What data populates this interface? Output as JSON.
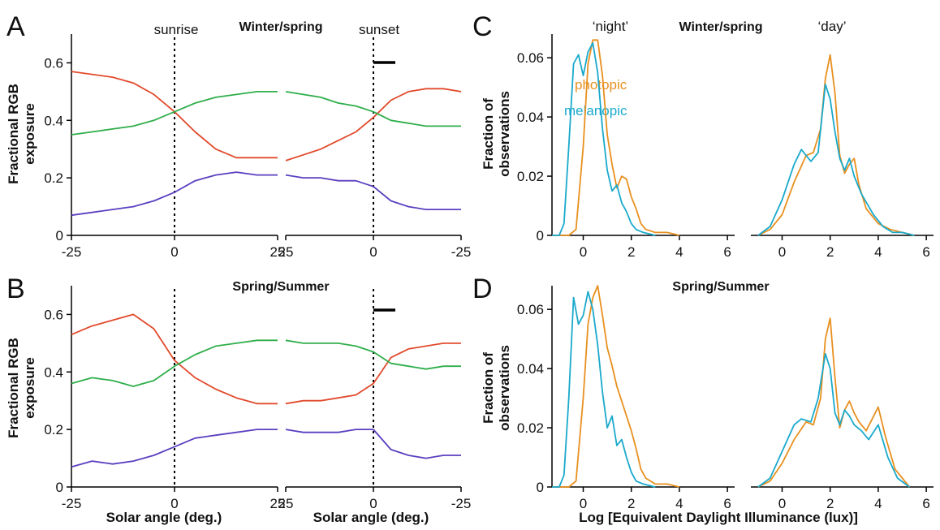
{
  "figure": {
    "panel_letters": [
      "A",
      "B",
      "C",
      "D"
    ],
    "titles": {
      "winter": "Winter/spring",
      "summer": "Spring/Summer"
    },
    "event_labels": {
      "sunrise": "sunrise",
      "sunset": "sunset"
    },
    "period_labels": {
      "night": "‘night’",
      "day": "‘day’"
    },
    "ylabel_rgb": [
      "Fractional RGB",
      "exposure"
    ],
    "ylabel_fraction": [
      "Fraction of",
      "observations"
    ],
    "xlabel_solar": "Solar angle (deg.)",
    "xlabel_log": "Log [Equivalent Daylight Illuminance (lux)]",
    "legend": {
      "photopic": "photopic",
      "melanopic": "melanopic"
    },
    "ticks": {
      "rgb_y": [
        "0",
        "0.2",
        "0.4",
        "0.6"
      ],
      "frac_y": [
        "0",
        "0.02",
        "0.04",
        "0.06"
      ],
      "sunrise_x": [
        "-25",
        "0",
        "25"
      ],
      "sunset_x": [
        "25",
        "0",
        "-25"
      ],
      "log_x": [
        "0",
        "2",
        "4",
        "6"
      ]
    }
  },
  "colors": {
    "red": "#e24a2c",
    "green": "#2fae4a",
    "blue": "#5a3fc0",
    "photopic": "#e8901f",
    "melanopic": "#1aa9cc"
  },
  "chart_data": [
    {
      "id": "A-sunrise",
      "type": "line",
      "title": "Winter/spring",
      "xlabel": "",
      "ylabel": "Fractional RGB exposure",
      "xlim": [
        -25,
        25
      ],
      "ylim": [
        0,
        0.7
      ],
      "xticks": [
        -25,
        0,
        25
      ],
      "yticks": [
        0,
        0.2,
        0.4,
        0.6
      ],
      "series": [
        {
          "color": "red",
          "x": [
            -25,
            -20,
            -15,
            -10,
            -5,
            0,
            5,
            10,
            15,
            20,
            25
          ],
          "y": [
            0.57,
            0.56,
            0.55,
            0.53,
            0.49,
            0.43,
            0.36,
            0.3,
            0.27,
            0.27,
            0.27
          ]
        },
        {
          "color": "green",
          "x": [
            -25,
            -20,
            -15,
            -10,
            -5,
            0,
            5,
            10,
            15,
            20,
            25
          ],
          "y": [
            0.35,
            0.36,
            0.37,
            0.38,
            0.4,
            0.43,
            0.46,
            0.48,
            0.49,
            0.5,
            0.5
          ]
        },
        {
          "color": "blue",
          "x": [
            -25,
            -20,
            -15,
            -10,
            -5,
            0,
            5,
            10,
            15,
            20,
            25
          ],
          "y": [
            0.07,
            0.08,
            0.09,
            0.1,
            0.12,
            0.15,
            0.19,
            0.21,
            0.22,
            0.21,
            0.21
          ]
        }
      ]
    },
    {
      "id": "A-sunset",
      "type": "line",
      "xlabel": "",
      "ylabel": "",
      "xlim": [
        25,
        -25
      ],
      "ylim": [
        0,
        0.7
      ],
      "xticks": [
        25,
        0,
        -25
      ],
      "yticks": [
        0,
        0.2,
        0.4,
        0.6
      ],
      "series": [
        {
          "color": "red",
          "x": [
            25,
            20,
            15,
            10,
            5,
            0,
            -5,
            -10,
            -15,
            -20,
            -25
          ],
          "y": [
            0.26,
            0.28,
            0.3,
            0.33,
            0.36,
            0.41,
            0.47,
            0.5,
            0.51,
            0.51,
            0.5
          ]
        },
        {
          "color": "green",
          "x": [
            25,
            20,
            15,
            10,
            5,
            0,
            -5,
            -10,
            -15,
            -20,
            -25
          ],
          "y": [
            0.5,
            0.49,
            0.48,
            0.46,
            0.45,
            0.43,
            0.4,
            0.39,
            0.38,
            0.38,
            0.38
          ]
        },
        {
          "color": "blue",
          "x": [
            25,
            20,
            15,
            10,
            5,
            0,
            -5,
            -10,
            -15,
            -20,
            -25
          ],
          "y": [
            0.21,
            0.2,
            0.2,
            0.19,
            0.19,
            0.17,
            0.12,
            0.1,
            0.09,
            0.09,
            0.09
          ]
        }
      ]
    },
    {
      "id": "B-sunrise",
      "type": "line",
      "title": "Spring/Summer",
      "xlabel": "Solar angle (deg.)",
      "ylabel": "Fractional RGB exposure",
      "xlim": [
        -25,
        25
      ],
      "ylim": [
        0,
        0.7
      ],
      "xticks": [
        -25,
        0,
        25
      ],
      "yticks": [
        0,
        0.2,
        0.4,
        0.6
      ],
      "series": [
        {
          "color": "red",
          "x": [
            -25,
            -20,
            -15,
            -10,
            -5,
            0,
            5,
            10,
            15,
            20,
            25
          ],
          "y": [
            0.53,
            0.56,
            0.58,
            0.6,
            0.55,
            0.44,
            0.38,
            0.34,
            0.31,
            0.29,
            0.29
          ]
        },
        {
          "color": "green",
          "x": [
            -25,
            -20,
            -15,
            -10,
            -5,
            0,
            5,
            10,
            15,
            20,
            25
          ],
          "y": [
            0.36,
            0.38,
            0.37,
            0.35,
            0.37,
            0.42,
            0.46,
            0.49,
            0.5,
            0.51,
            0.51
          ]
        },
        {
          "color": "blue",
          "x": [
            -25,
            -20,
            -15,
            -10,
            -5,
            0,
            5,
            10,
            15,
            20,
            25
          ],
          "y": [
            0.07,
            0.09,
            0.08,
            0.09,
            0.11,
            0.14,
            0.17,
            0.18,
            0.19,
            0.2,
            0.2
          ]
        }
      ]
    },
    {
      "id": "B-sunset",
      "type": "line",
      "xlabel": "Solar angle (deg.)",
      "ylabel": "",
      "xlim": [
        25,
        -25
      ],
      "ylim": [
        0,
        0.7
      ],
      "xticks": [
        25,
        0,
        -25
      ],
      "yticks": [
        0,
        0.2,
        0.4,
        0.6
      ],
      "series": [
        {
          "color": "red",
          "x": [
            25,
            20,
            15,
            10,
            5,
            0,
            -5,
            -10,
            -15,
            -20,
            -25
          ],
          "y": [
            0.29,
            0.3,
            0.3,
            0.31,
            0.32,
            0.36,
            0.45,
            0.48,
            0.49,
            0.5,
            0.5
          ]
        },
        {
          "color": "green",
          "x": [
            25,
            20,
            15,
            10,
            5,
            0,
            -5,
            -10,
            -15,
            -20,
            -25
          ],
          "y": [
            0.51,
            0.5,
            0.5,
            0.5,
            0.49,
            0.47,
            0.43,
            0.42,
            0.41,
            0.42,
            0.42
          ]
        },
        {
          "color": "blue",
          "x": [
            25,
            20,
            15,
            10,
            5,
            0,
            -5,
            -10,
            -15,
            -20,
            -25
          ],
          "y": [
            0.2,
            0.19,
            0.19,
            0.19,
            0.2,
            0.2,
            0.13,
            0.11,
            0.1,
            0.11,
            0.11
          ]
        }
      ]
    },
    {
      "id": "C-night",
      "type": "line",
      "title": "Winter/spring",
      "xlabel": "",
      "ylabel": "Fraction of observations",
      "xlim": [
        -1.3,
        6.3
      ],
      "ylim": [
        0,
        0.068
      ],
      "xticks": [
        0,
        2,
        4,
        6
      ],
      "yticks": [
        0,
        0.02,
        0.04,
        0.06
      ],
      "series": [
        {
          "name": "photopic",
          "color": "photopic",
          "x": [
            -1.3,
            -0.6,
            -0.3,
            0,
            0.2,
            0.4,
            0.6,
            0.8,
            1.0,
            1.2,
            1.4,
            1.6,
            1.8,
            2.0,
            2.2,
            2.4,
            2.6,
            3.0,
            3.5,
            4.0
          ],
          "y": [
            0,
            0,
            0.002,
            0.03,
            0.058,
            0.066,
            0.066,
            0.054,
            0.034,
            0.024,
            0.016,
            0.02,
            0.019,
            0.013,
            0.009,
            0.004,
            0.002,
            0.001,
            0.001,
            0
          ]
        },
        {
          "name": "melanopic",
          "color": "melanopic",
          "x": [
            -1.3,
            -1.0,
            -0.8,
            -0.6,
            -0.4,
            -0.2,
            0,
            0.2,
            0.4,
            0.6,
            0.8,
            1.0,
            1.2,
            1.4,
            1.6,
            1.8,
            2.0,
            2.2,
            2.5,
            3.0
          ],
          "y": [
            0,
            0,
            0.004,
            0.03,
            0.058,
            0.061,
            0.054,
            0.062,
            0.065,
            0.055,
            0.036,
            0.022,
            0.015,
            0.017,
            0.011,
            0.008,
            0.004,
            0.002,
            0.001,
            0
          ]
        }
      ]
    },
    {
      "id": "C-day",
      "type": "line",
      "title": "Winter/spring",
      "xlabel": "",
      "ylabel": "",
      "xlim": [
        -1.3,
        6.3
      ],
      "ylim": [
        0,
        0.068
      ],
      "xticks": [
        0,
        2,
        4,
        6
      ],
      "yticks": [
        0,
        0.02,
        0.04,
        0.06
      ],
      "series": [
        {
          "name": "photopic",
          "color": "photopic",
          "x": [
            -1.0,
            -0.5,
            0,
            0.5,
            1.0,
            1.3,
            1.6,
            1.8,
            2.0,
            2.2,
            2.4,
            2.6,
            2.8,
            3.0,
            3.2,
            3.5,
            4.0,
            4.5,
            5.0,
            5.5
          ],
          "y": [
            0,
            0.002,
            0.007,
            0.018,
            0.027,
            0.028,
            0.036,
            0.053,
            0.061,
            0.048,
            0.027,
            0.021,
            0.024,
            0.026,
            0.017,
            0.009,
            0.004,
            0.002,
            0.001,
            0
          ]
        },
        {
          "name": "melanopic",
          "color": "melanopic",
          "x": [
            -1.0,
            -0.5,
            0,
            0.5,
            0.8,
            1.2,
            1.5,
            1.8,
            2.0,
            2.2,
            2.4,
            2.6,
            2.8,
            3.0,
            3.3,
            3.8,
            4.2,
            4.6,
            5.0,
            5.5
          ],
          "y": [
            0,
            0.003,
            0.012,
            0.024,
            0.029,
            0.025,
            0.028,
            0.051,
            0.046,
            0.035,
            0.026,
            0.022,
            0.026,
            0.02,
            0.014,
            0.007,
            0.003,
            0.001,
            0.001,
            0
          ]
        }
      ]
    },
    {
      "id": "D-night",
      "type": "line",
      "title": "Spring/Summer",
      "xlabel": "Log [Equivalent Daylight Illuminance (lux)]",
      "ylabel": "Fraction of observations",
      "xlim": [
        -1.3,
        6.3
      ],
      "ylim": [
        0,
        0.068
      ],
      "xticks": [
        0,
        2,
        4,
        6
      ],
      "yticks": [
        0,
        0.02,
        0.04,
        0.06
      ],
      "series": [
        {
          "name": "photopic",
          "color": "photopic",
          "x": [
            -1.3,
            -0.6,
            -0.3,
            0,
            0.2,
            0.4,
            0.6,
            0.8,
            1.0,
            1.2,
            1.4,
            1.6,
            1.8,
            2.0,
            2.2,
            2.4,
            2.6,
            3.0,
            3.5,
            4.0
          ],
          "y": [
            0,
            0,
            0.002,
            0.03,
            0.055,
            0.064,
            0.068,
            0.058,
            0.047,
            0.041,
            0.034,
            0.029,
            0.024,
            0.019,
            0.013,
            0.006,
            0.003,
            0.001,
            0.001,
            0
          ]
        },
        {
          "name": "melanopic",
          "color": "melanopic",
          "x": [
            -1.3,
            -1.0,
            -0.8,
            -0.6,
            -0.4,
            -0.2,
            0,
            0.2,
            0.4,
            0.6,
            0.8,
            1.0,
            1.2,
            1.4,
            1.6,
            1.8,
            2.0,
            2.2,
            2.5,
            3.0
          ],
          "y": [
            0,
            0,
            0.004,
            0.03,
            0.064,
            0.055,
            0.058,
            0.066,
            0.06,
            0.048,
            0.032,
            0.02,
            0.024,
            0.014,
            0.016,
            0.01,
            0.005,
            0.002,
            0.001,
            0
          ]
        }
      ]
    },
    {
      "id": "D-day",
      "type": "line",
      "title": "Spring/Summer",
      "xlabel": "Log [Equivalent Daylight Illuminance (lux)]",
      "ylabel": "",
      "xlim": [
        -1.3,
        6.3
      ],
      "ylim": [
        0,
        0.068
      ],
      "xticks": [
        0,
        2,
        4,
        6
      ],
      "yticks": [
        0,
        0.02,
        0.04,
        0.06
      ],
      "series": [
        {
          "name": "photopic",
          "color": "photopic",
          "x": [
            -1.0,
            -0.5,
            0,
            0.5,
            1.0,
            1.3,
            1.6,
            1.8,
            2.0,
            2.2,
            2.4,
            2.6,
            2.8,
            3.0,
            3.2,
            3.5,
            4.0,
            4.3,
            4.7,
            5.3
          ],
          "y": [
            0,
            0.002,
            0.008,
            0.016,
            0.022,
            0.021,
            0.03,
            0.05,
            0.057,
            0.037,
            0.02,
            0.026,
            0.029,
            0.025,
            0.022,
            0.019,
            0.027,
            0.017,
            0.006,
            0
          ]
        },
        {
          "name": "melanopic",
          "color": "melanopic",
          "x": [
            -1.0,
            -0.5,
            0,
            0.5,
            0.8,
            1.2,
            1.5,
            1.8,
            2.0,
            2.2,
            2.4,
            2.6,
            2.8,
            3.0,
            3.3,
            3.6,
            4.0,
            4.4,
            4.8,
            5.3
          ],
          "y": [
            0,
            0.003,
            0.012,
            0.021,
            0.023,
            0.022,
            0.03,
            0.045,
            0.04,
            0.025,
            0.021,
            0.026,
            0.024,
            0.021,
            0.019,
            0.016,
            0.021,
            0.01,
            0.003,
            0
          ]
        }
      ]
    }
  ]
}
